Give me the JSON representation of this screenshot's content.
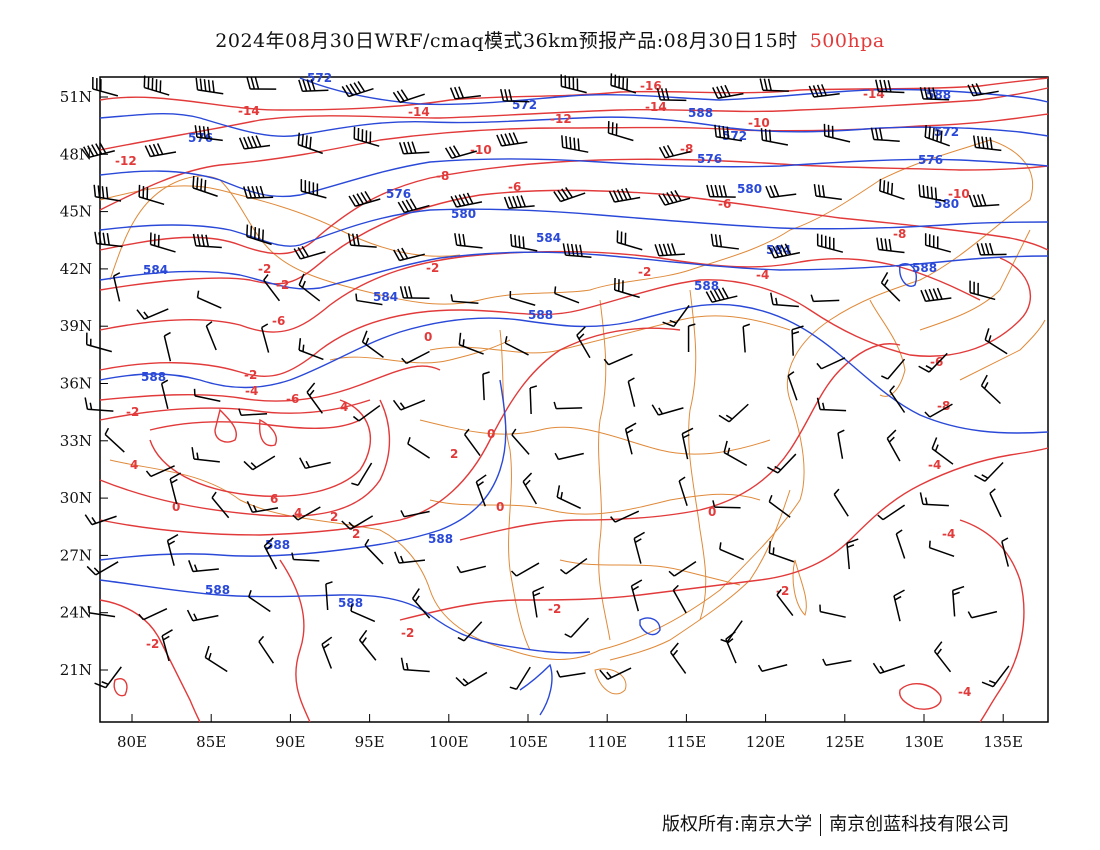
{
  "title": {
    "main": "2024年08月30日WRF/cmaq模式36km预报产品:08月30日15时",
    "level": "500hpa",
    "level_color": "#e23a3a"
  },
  "footer": {
    "copyright": "版权所有:南京大学",
    "company": "南京创蓝科技有限公司"
  },
  "axes": {
    "lat_labels": [
      "51N",
      "48N",
      "45N",
      "42N",
      "39N",
      "36N",
      "33N",
      "30N",
      "27N",
      "24N",
      "21N"
    ],
    "lon_labels": [
      "80E",
      "85E",
      "90E",
      "95E",
      "100E",
      "105E",
      "110E",
      "115E",
      "120E",
      "125E",
      "130E",
      "135E"
    ]
  },
  "colors": {
    "temperature": "#e23a3a",
    "geopotential": "#2a49d8",
    "boundary": "#e08a3a",
    "wind": "#000000"
  },
  "contour_labels": {
    "temperature": [
      "-14",
      "-14",
      "-16",
      "-14",
      "-14",
      "-12",
      "-12",
      "-10",
      "-10",
      "-8",
      "-8",
      "-6",
      "-6",
      "-10",
      "-8",
      "-2",
      "-2",
      "-4",
      "-6",
      "0",
      "-2",
      "-4",
      "-6",
      "-8",
      "-6",
      "4",
      "0",
      "-2",
      "2",
      "4",
      "0",
      "6",
      "4",
      "2",
      "2",
      "0",
      "-4",
      "-2",
      "-2",
      "-2",
      "-4",
      "-2",
      "0",
      "-2",
      "-2",
      "-4"
    ],
    "geopotential": [
      "572",
      "572",
      "576",
      "588",
      "572",
      "588",
      "576",
      "572",
      "576",
      "580",
      "576",
      "580",
      "584",
      "584",
      "584",
      "580",
      "584",
      "588",
      "588",
      "588",
      "588",
      "588",
      "588",
      "588",
      "588"
    ]
  }
}
